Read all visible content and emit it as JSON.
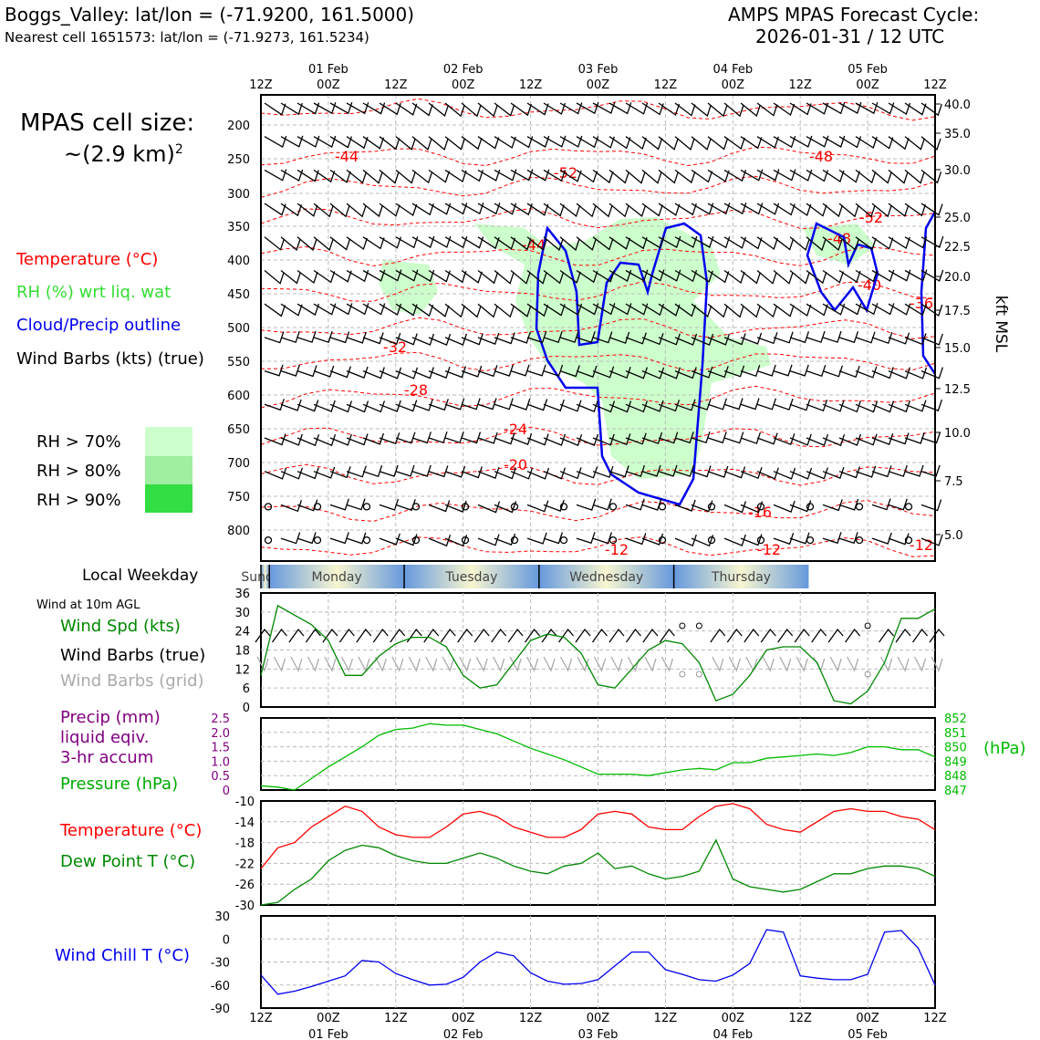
{
  "header": {
    "station_line": "Boggs_Valley: lat/lon = (-71.9200, 161.5000)",
    "cell_line": "Nearest cell 1651573: lat/lon = (-71.9273, 161.5234)",
    "model_title": "AMPS MPAS Forecast Cycle:",
    "cycle": "2026-01-31 / 12 UTC"
  },
  "cell_size": {
    "label": "MPAS cell size:",
    "value": "~(2.9 km)",
    "exponent": "2"
  },
  "legend": {
    "temperature": "Temperature (°C)",
    "rh": "RH (%) wrt liq. wat",
    "cloud": "Cloud/Precip outline",
    "barbs": "Wind Barbs (kts) (true)",
    "rh70": "RH > 70%",
    "rh80": "RH > 80%",
    "rh90": "RH > 90%",
    "colors": {
      "temp": "#ff0000",
      "rh": "#44dd44",
      "cloud": "#0000ee",
      "rh70": "#ccffcc",
      "rh80": "#a0eea0",
      "rh90": "#33dd44"
    }
  },
  "time_axis": {
    "hours": [
      "12Z",
      "00Z",
      "12Z",
      "00Z",
      "12Z",
      "00Z",
      "12Z",
      "00Z",
      "12Z",
      "00Z",
      "12Z"
    ],
    "dates": [
      "01 Feb",
      "02 Feb",
      "03 Feb",
      "04 Feb",
      "05 Feb"
    ]
  },
  "profile": {
    "pressure_ticks": [
      "200",
      "250",
      "300",
      "350",
      "400",
      "450",
      "500",
      "550",
      "600",
      "650",
      "700",
      "750",
      "800"
    ],
    "kft_ticks": [
      "40.0",
      "35.0",
      "30.0",
      "25.0",
      "22.5",
      "20.0",
      "17.5",
      "15.0",
      "12.5",
      "10.0",
      "7.5",
      "5.0"
    ],
    "kft_label": "kft MSL",
    "temp_labels": [
      "-44",
      "-52",
      "-48",
      "-52",
      "-44",
      "-48",
      "-40",
      "-36",
      "-32",
      "-28",
      "-24",
      "-20",
      "-16",
      "-12",
      "-12",
      "-12"
    ]
  },
  "weekday": {
    "label": "Local Weekday",
    "days": [
      "Sunday",
      "Monday",
      "Tuesday",
      "Wednesday",
      "Thursday"
    ]
  },
  "wind_panel": {
    "title": "Wind at 10m AGL",
    "spd_label": "Wind Spd (kts)",
    "barbs_true": "Wind Barbs (true)",
    "barbs_grid": "Wind Barbs (grid)",
    "yticks": [
      "36",
      "30",
      "24",
      "18",
      "12",
      "6",
      "0"
    ],
    "color": "#008800"
  },
  "precip_panel": {
    "precip_label1": "Precip (mm)",
    "precip_label2": "liquid eqiv.",
    "precip_label3": "3-hr accum",
    "pressure_label": "Pressure (hPa)",
    "left_ticks": [
      "2.5",
      "2.0",
      "1.5",
      "1.0",
      "0.5",
      "0"
    ],
    "right_ticks": [
      "852",
      "851",
      "850",
      "849",
      "848",
      "847"
    ],
    "right_unit": "(hPa)",
    "precip_color": "#800080",
    "pressure_color": "#00bb00"
  },
  "temp_panel": {
    "temp_label": "Temperature (°C)",
    "dew_label": "Dew Point T (°C)",
    "yticks": [
      "-10",
      "-14",
      "-18",
      "-22",
      "-26",
      "-30"
    ]
  },
  "chill_panel": {
    "label": "Wind Chill T (°C)",
    "yticks": [
      "30",
      "0",
      "-30",
      "-60",
      "-90"
    ]
  },
  "chart_data": [
    {
      "type": "line",
      "title": "Wind Spd (kts) at 10m AGL",
      "x_hours": [
        0,
        3,
        6,
        9,
        12,
        15,
        18,
        21,
        24,
        27,
        30,
        33,
        36,
        39,
        42,
        45,
        48,
        51,
        54,
        57,
        60,
        63,
        66,
        69,
        72,
        75,
        78,
        81,
        84,
        87,
        90,
        93,
        96,
        99,
        102,
        105,
        108,
        111,
        114,
        117,
        120
      ],
      "values": [
        10,
        32,
        29,
        26,
        21,
        10,
        10,
        16,
        20,
        22,
        22,
        19,
        10,
        6,
        7,
        14,
        21,
        23,
        22,
        17,
        7,
        6,
        12,
        18,
        21,
        20,
        14,
        2,
        4,
        10,
        18,
        19,
        19,
        14,
        2,
        1,
        5,
        14,
        28,
        28,
        31
      ],
      "ylim": [
        0,
        36
      ]
    },
    {
      "type": "line",
      "title": "Pressure (hPa)",
      "x_hours": [
        0,
        3,
        6,
        9,
        12,
        15,
        18,
        21,
        24,
        27,
        30,
        33,
        36,
        39,
        42,
        45,
        48,
        51,
        54,
        57,
        60,
        63,
        66,
        69,
        72,
        75,
        78,
        81,
        84,
        87,
        90,
        93,
        96,
        99,
        102,
        105,
        108,
        111,
        114,
        117,
        120
      ],
      "values": [
        847.3,
        847.2,
        847.0,
        847.8,
        848.6,
        849.3,
        850.0,
        850.8,
        851.2,
        851.3,
        851.6,
        851.5,
        851.5,
        851.2,
        850.9,
        850.4,
        849.9,
        849.5,
        849.1,
        848.6,
        848.1,
        848.1,
        848.1,
        848.0,
        848.2,
        848.4,
        848.5,
        848.4,
        848.9,
        848.9,
        849.2,
        849.3,
        849.4,
        849.5,
        849.4,
        849.6,
        850.0,
        850.0,
        849.8,
        849.8,
        849.3
      ],
      "ylim": [
        847,
        852
      ],
      "precip_values": [
        0,
        0,
        0,
        0,
        0,
        0,
        0,
        0,
        0,
        0,
        0,
        0,
        0,
        0,
        0,
        0,
        0,
        0,
        0,
        0,
        0,
        0,
        0,
        0,
        0,
        0,
        0,
        0,
        0,
        0,
        0,
        0,
        0,
        0,
        0,
        0,
        0,
        0,
        0,
        0,
        0
      ]
    },
    {
      "type": "line",
      "title": "Temperature and Dew Point (°C)",
      "x_hours": [
        0,
        3,
        6,
        9,
        12,
        15,
        18,
        21,
        24,
        27,
        30,
        33,
        36,
        39,
        42,
        45,
        48,
        51,
        54,
        57,
        60,
        63,
        66,
        69,
        72,
        75,
        78,
        81,
        84,
        87,
        90,
        93,
        96,
        99,
        102,
        105,
        108,
        111,
        114,
        117,
        120
      ],
      "series": [
        {
          "name": "Temperature",
          "values": [
            -23,
            -19,
            -18,
            -15,
            -13,
            -11,
            -12,
            -15,
            -16.5,
            -17,
            -17,
            -15,
            -12.5,
            -12,
            -13,
            -15,
            -16,
            -17,
            -17,
            -15.5,
            -12.5,
            -12,
            -12.5,
            -15,
            -15.5,
            -15.5,
            -13,
            -11,
            -10.5,
            -11.5,
            -14.5,
            -15.5,
            -16,
            -14,
            -12,
            -11.5,
            -12,
            -12,
            -13,
            -13.5,
            -15.5
          ]
        },
        {
          "name": "Dew Point",
          "values": [
            -30,
            -29.5,
            -27,
            -25,
            -21.5,
            -19.5,
            -18.5,
            -19,
            -20.5,
            -21.5,
            -22,
            -22,
            -21,
            -20,
            -21,
            -22.5,
            -23.5,
            -24,
            -22.5,
            -22,
            -20,
            -23,
            -22.5,
            -24,
            -25,
            -24.5,
            -23.5,
            -17.5,
            -25,
            -26.5,
            -27,
            -27.5,
            -27,
            -25.5,
            -24,
            -24,
            -23,
            -22.5,
            -22.5,
            -23,
            -24.5
          ]
        }
      ],
      "ylim": [
        -30,
        -10
      ]
    },
    {
      "type": "line",
      "title": "Wind Chill T (°C)",
      "x_hours": [
        0,
        3,
        6,
        9,
        12,
        15,
        18,
        21,
        24,
        27,
        30,
        33,
        36,
        39,
        42,
        45,
        48,
        51,
        54,
        57,
        60,
        63,
        66,
        69,
        72,
        75,
        78,
        81,
        84,
        87,
        90,
        93,
        96,
        99,
        102,
        105,
        108,
        111,
        114,
        117,
        120
      ],
      "values": [
        -47,
        -72,
        -68,
        -62,
        -55,
        -48,
        -28,
        -30,
        -45,
        -53,
        -60,
        -59,
        -50,
        -30,
        -17,
        -22,
        -44,
        -55,
        -59,
        -58,
        -53,
        -35,
        -17,
        -17,
        -40,
        -46,
        -53,
        -55,
        -47,
        -32,
        12,
        9,
        -48,
        -51,
        -53,
        -53,
        -46,
        9,
        11,
        -12,
        -60
      ],
      "ylim": [
        -90,
        30
      ]
    }
  ]
}
